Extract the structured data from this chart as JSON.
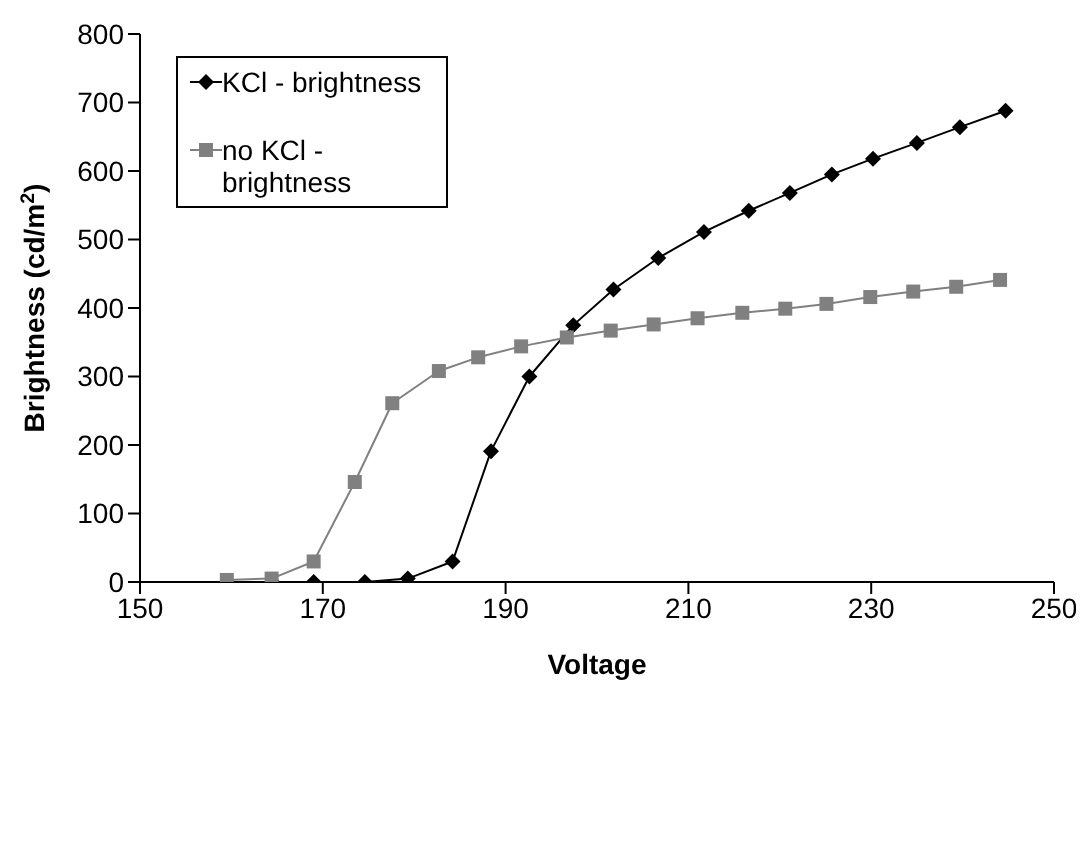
{
  "chart_data": {
    "type": "line",
    "xlabel": "Voltage",
    "ylabel": "Brightness (cd/m$^{2}$)",
    "xlim": [
      150,
      250
    ],
    "xticks": [
      150,
      170,
      190,
      210,
      230,
      250
    ],
    "ylim": [
      0,
      800
    ],
    "yticks": [
      0,
      100,
      200,
      300,
      400,
      500,
      600,
      700,
      800
    ],
    "grid": false,
    "legend": "top left",
    "line_style": "solid",
    "series": [
      {
        "name": "KCl - brightness",
        "color": "#000000",
        "marker": "diamond",
        "x": [
          159.5,
          164.5,
          169,
          174.6,
          179.3,
          184.2,
          188.4,
          192.6,
          197.4,
          201.8,
          206.7,
          211.7,
          216.6,
          221.1,
          225.7,
          230.2,
          235,
          239.7,
          244.7
        ],
        "values": [
          0,
          0,
          0,
          0,
          5,
          30,
          191,
          300,
          375,
          427,
          473,
          511,
          542,
          568,
          595,
          618,
          641,
          664,
          688
        ]
      },
      {
        "name": "no KCl - brightness",
        "color": "#808080",
        "marker": "square",
        "x": [
          159.5,
          164.4,
          169,
          173.5,
          177.6,
          182.7,
          187,
          191.7,
          196.7,
          201.5,
          206.2,
          211,
          215.9,
          220.6,
          225.1,
          229.9,
          234.6,
          239.3,
          244.1
        ],
        "values": [
          3,
          5,
          30,
          146,
          261,
          308,
          328,
          344,
          357,
          367,
          376,
          385,
          393,
          399,
          406,
          416,
          424,
          431,
          441
        ]
      }
    ]
  }
}
